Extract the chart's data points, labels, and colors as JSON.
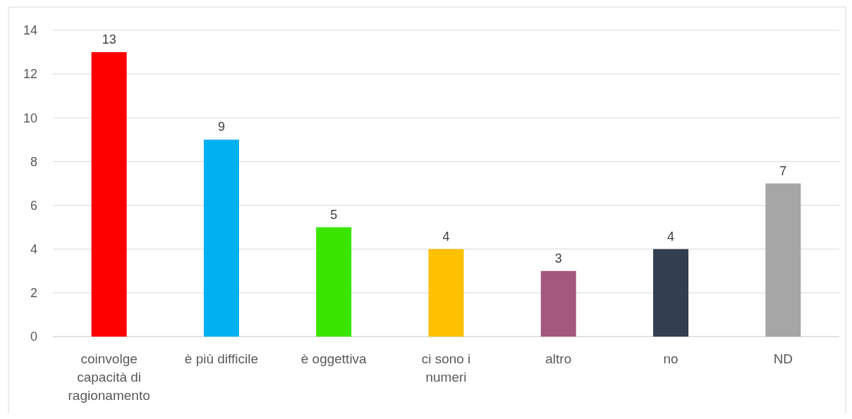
{
  "chart_data": {
    "type": "bar",
    "categories": [
      "coinvolge capacità di ragionamento",
      "è più difficile",
      "è oggettiva",
      "ci sono i numeri",
      "altro",
      "no",
      "ND"
    ],
    "values": [
      13,
      9,
      5,
      4,
      3,
      4,
      7
    ],
    "colors": [
      "#ff0000",
      "#00b0f0",
      "#3ae600",
      "#ffc000",
      "#a5587e",
      "#333f50",
      "#a6a6a6"
    ],
    "ylim": [
      0,
      14
    ],
    "yticks": [
      0,
      2,
      4,
      6,
      8,
      10,
      12,
      14
    ],
    "grid": "y",
    "data_labels": true
  }
}
